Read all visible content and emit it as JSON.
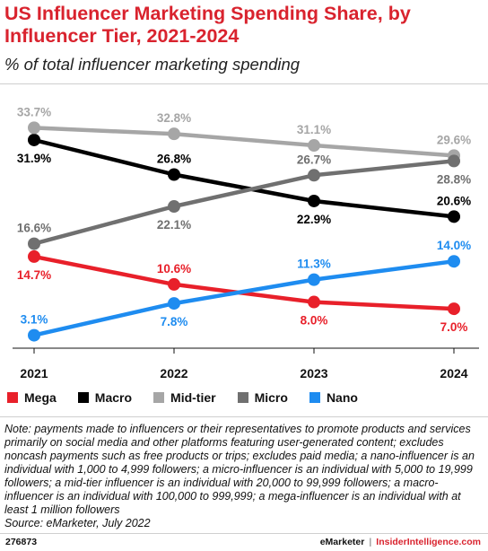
{
  "header": {
    "title": "US Influencer Marketing Spending Share, by Influencer Tier, 2021-2024",
    "subtitle": "% of total influencer marketing spending"
  },
  "chart_data": {
    "type": "line",
    "categories": [
      "2021",
      "2022",
      "2023",
      "2024"
    ],
    "ylim": [
      0,
      36
    ],
    "grid": false,
    "legend_position": "bottom",
    "series": [
      {
        "name": "Mega",
        "color": "#e8202a",
        "values": [
          14.7,
          10.6,
          8.0,
          7.0
        ],
        "labels": [
          "14.7%",
          "10.6%",
          "8.0%",
          "7.0%"
        ],
        "label_pos": [
          "below",
          "above",
          "below",
          "below"
        ]
      },
      {
        "name": "Macro",
        "color": "#000000",
        "values": [
          31.9,
          26.8,
          22.9,
          20.6
        ],
        "labels": [
          "31.9%",
          "26.8%",
          "22.9%",
          "20.6%"
        ],
        "label_pos": [
          "below",
          "above",
          "below",
          "above"
        ]
      },
      {
        "name": "Mid-tier",
        "color": "#a6a6a6",
        "values": [
          33.7,
          32.8,
          31.1,
          29.6
        ],
        "labels": [
          "33.7%",
          "32.8%",
          "31.1%",
          "29.6%"
        ],
        "label_pos": [
          "above",
          "above",
          "above",
          "above"
        ]
      },
      {
        "name": "Micro",
        "color": "#707070",
        "values": [
          16.6,
          22.1,
          26.7,
          28.8
        ],
        "labels": [
          "16.6%",
          "22.1%",
          "26.7%",
          "28.8%"
        ],
        "label_pos": [
          "above",
          "below",
          "above",
          "below"
        ]
      },
      {
        "name": "Nano",
        "color": "#1e8cf0",
        "values": [
          3.1,
          7.8,
          11.3,
          14.0
        ],
        "labels": [
          "3.1%",
          "7.8%",
          "11.3%",
          "14.0%"
        ],
        "label_pos": [
          "above",
          "below",
          "above",
          "above"
        ]
      }
    ]
  },
  "note": "Note: payments made to influencers or their representatives to promote products and services primarily on social media and other platforms featuring user-generated content; excludes noncash payments such as free products or trips; excludes paid media; a nano-influencer is an individual with 1,000 to 4,999 followers; a micro-influencer is an individual with 5,000 to 19,999 followers; a mid-tier influencer is an individual with 20,000 to 99,999 followers; a macro-influencer is an individual with 100,000 to 999,999; a mega-influencer is an individual with at least 1 million followers",
  "source": "Source: eMarketer, July 2022",
  "footer": {
    "chart_id": "276873",
    "brand": "eMarketer",
    "separator": "|",
    "brand2": "InsiderIntelligence.com"
  }
}
